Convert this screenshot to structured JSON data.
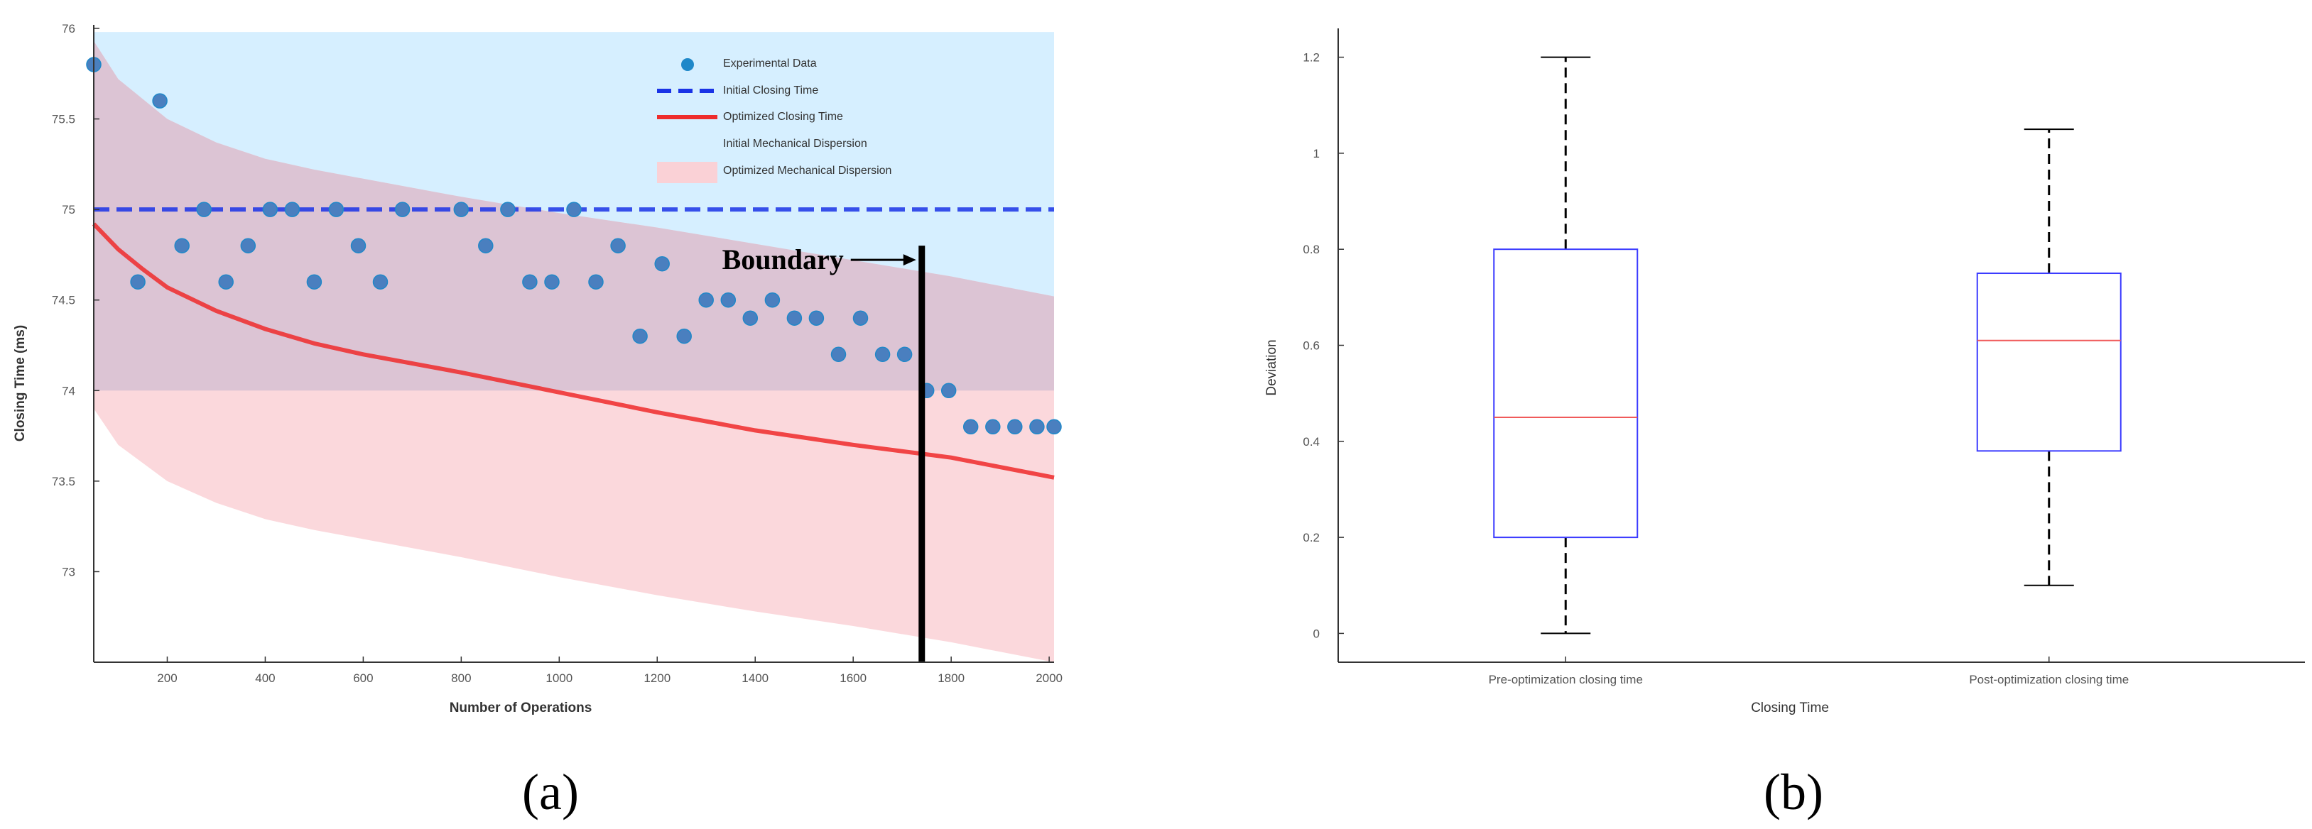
{
  "chart_data": [
    {
      "panel_label": "(a)",
      "type": "scatter",
      "xlabel": "Number of Operations",
      "ylabel": "Closing Time (ms)",
      "xlim": [
        50,
        2010
      ],
      "ylim": [
        72.5,
        76
      ],
      "x_ticks": [
        200,
        400,
        600,
        800,
        1000,
        1200,
        1400,
        1600,
        1800,
        2000
      ],
      "y_ticks": [
        73,
        73.5,
        74,
        74.5,
        75,
        75.5,
        76
      ],
      "experimental_data": {
        "name": "Experimental Data",
        "x": [
          50,
          140,
          185,
          230,
          275,
          320,
          365,
          410,
          455,
          500,
          545,
          590,
          635,
          680,
          800,
          850,
          895,
          940,
          985,
          1030,
          1075,
          1120,
          1165,
          1210,
          1255,
          1300,
          1345,
          1390,
          1435,
          1480,
          1525,
          1570,
          1615,
          1660,
          1705,
          1750,
          1795,
          1840,
          1885,
          1930,
          1975,
          2010
        ],
        "y": [
          75.8,
          74.6,
          75.6,
          74.8,
          75.0,
          74.6,
          74.8,
          75.0,
          75.0,
          74.6,
          75.0,
          74.8,
          74.6,
          75.0,
          75.0,
          74.8,
          75.0,
          74.6,
          74.6,
          75.0,
          74.6,
          74.8,
          74.3,
          74.7,
          74.3,
          74.5,
          74.5,
          74.4,
          74.5,
          74.4,
          74.4,
          74.2,
          74.4,
          74.2,
          74.2,
          74.0,
          74.0,
          73.8,
          73.8,
          73.8,
          73.8,
          73.8
        ]
      },
      "initial_closing_time": {
        "name": "Initial Closing Time",
        "value": 75.0
      },
      "optimized_closing_time": {
        "name": "Optimized Closing Time",
        "x": [
          50,
          100,
          150,
          200,
          300,
          400,
          500,
          600,
          800,
          1000,
          1200,
          1400,
          1600,
          1800,
          2010
        ],
        "y": [
          74.92,
          74.78,
          74.67,
          74.57,
          74.44,
          74.34,
          74.26,
          74.2,
          74.1,
          73.99,
          73.88,
          73.78,
          73.7,
          73.63,
          73.52
        ]
      },
      "initial_dispersion": {
        "name": "Initial Mechanical Dispersion",
        "x": [
          50,
          2010
        ],
        "lower": [
          74.0,
          74.0
        ],
        "upper": [
          75.98,
          75.98
        ]
      },
      "optimized_dispersion": {
        "name": "Optimized Mechanical Dispersion",
        "x": [
          50,
          100,
          200,
          300,
          400,
          500,
          600,
          800,
          1000,
          1200,
          1400,
          1600,
          1800,
          2010
        ],
        "upper": [
          75.93,
          75.72,
          75.5,
          75.37,
          75.28,
          75.22,
          75.17,
          75.07,
          74.98,
          74.9,
          74.81,
          74.72,
          74.63,
          74.52
        ],
        "lower": [
          73.9,
          73.7,
          73.5,
          73.38,
          73.29,
          73.23,
          73.18,
          73.08,
          72.97,
          72.87,
          72.78,
          72.7,
          72.61,
          72.5
        ]
      },
      "annotation": {
        "text": "Boundary",
        "x": 1740,
        "y_range": [
          72.5,
          74.8
        ]
      }
    },
    {
      "panel_label": "(b)",
      "type": "box",
      "xlabel": "Closing Time",
      "ylabel": "Deviation",
      "ylim": [
        -0.06,
        1.26
      ],
      "y_ticks": [
        0,
        0.2,
        0.4,
        0.6,
        0.8,
        1,
        1.2
      ],
      "categories": [
        "Pre-optimization closing time",
        "Post-optimization closing time"
      ],
      "boxes": [
        {
          "min": 0.0,
          "q1": 0.2,
          "median": 0.45,
          "q3": 0.8,
          "max": 1.2
        },
        {
          "min": 0.1,
          "q1": 0.38,
          "median": 0.61,
          "q3": 0.75,
          "max": 1.05
        }
      ]
    }
  ],
  "colors": {
    "experimental": "#4a7fbf",
    "experimental_edge": "#1f88c9",
    "initial_line": "#1a33e6",
    "optimized_line": "#ee2c2c",
    "initial_band": "#d6efff",
    "optimized_band": "#fad1d6",
    "box_edge": "#3b3bff",
    "median": "#f05a5a",
    "whisker": "#000000"
  }
}
